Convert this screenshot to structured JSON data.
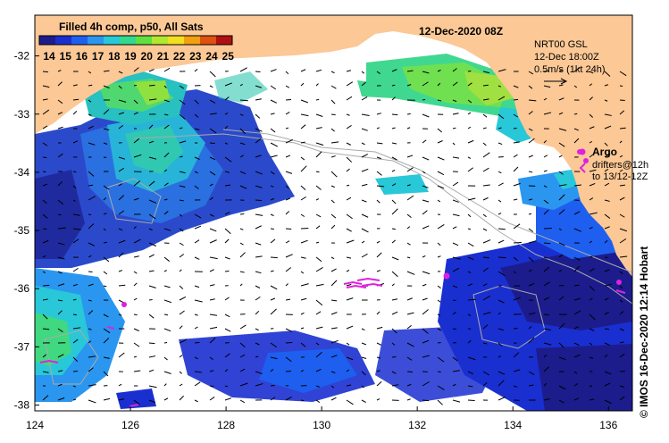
{
  "title": "12-Dec-2020 08Z",
  "colorbar": {
    "label": "Filled 4h comp, p50, All Sats",
    "ticks": [
      "14",
      "15",
      "16",
      "17",
      "18",
      "19",
      "20",
      "21",
      "22",
      "23",
      "24",
      "25"
    ],
    "colors": [
      "#1c1c8c",
      "#1a2fd0",
      "#1e5ff0",
      "#2a96f0",
      "#28c8d8",
      "#30d890",
      "#60e040",
      "#b0e830",
      "#f0e020",
      "#f0a010",
      "#e05010",
      "#b01010"
    ]
  },
  "axes": {
    "x_ticks": [
      "124",
      "126",
      "128",
      "130",
      "132",
      "134",
      "136"
    ],
    "y_ticks": [
      "-32",
      "-33",
      "-34",
      "-35",
      "-36",
      "-37",
      "-38"
    ],
    "lon_range": [
      124,
      136.5
    ],
    "lat_range": [
      -31.3,
      -38.1
    ]
  },
  "legend": {
    "product": "NRT00 GSL",
    "time": "12-Dec 18:00Z",
    "scale": "0.5m/s (1kt 24h)",
    "argo_label": "Argo",
    "drifters_line1": "drifters@12h",
    "drifters_line2": "to 13/12-12Z"
  },
  "credit": "© IMOS 16-Dec-2020 12:14 Hobart",
  "colors": {
    "land": "#fbc896",
    "ocean": "#ffffff",
    "argo": "#e020e0",
    "contour": "#aaaaaa"
  }
}
